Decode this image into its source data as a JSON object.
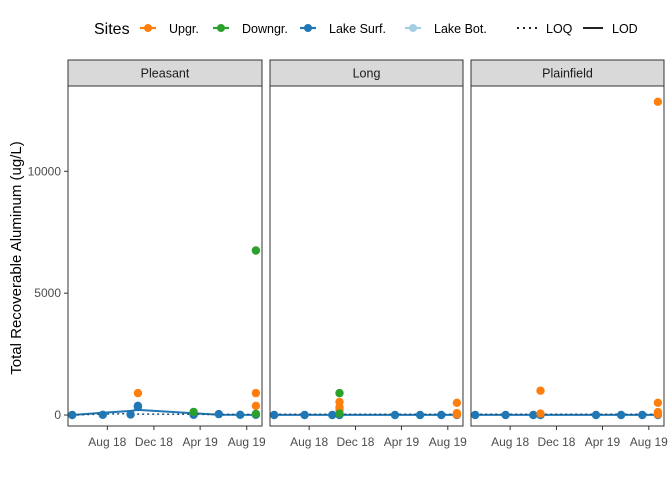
{
  "chart_data": {
    "type": "scatter",
    "ylabel": "Total Recoverable Aluminum (ug/L)",
    "y_ticks": [
      0,
      5000,
      10000
    ],
    "y_tick_labels": [
      "0",
      "5000",
      "10000"
    ],
    "ylim": [
      -450,
      13500
    ],
    "x_ticks": [
      "2018-08-01",
      "2018-12-01",
      "2019-04-01",
      "2019-08-01"
    ],
    "x_tick_labels": [
      "Aug 18",
      "Dec 18",
      "Apr 19",
      "Aug 19"
    ],
    "xlim": [
      "2018-04-20",
      "2019-09-10"
    ],
    "legend": {
      "title": "Sites",
      "position": "top",
      "site_items": [
        {
          "label": "Upgr.",
          "color": "#FF7F0E"
        },
        {
          "label": "Downgr.",
          "color": "#2CA02C"
        },
        {
          "label": "Lake Surf.",
          "color": "#1F77B4"
        },
        {
          "label": "Lake Bot.",
          "color": "#A6CEE3"
        }
      ],
      "line_items": [
        {
          "label": "LOQ",
          "style": "dotted"
        },
        {
          "label": "LOD",
          "style": "solid"
        }
      ]
    },
    "panels": [
      {
        "title": "Pleasant",
        "series": [
          {
            "site": "Lake Surf.",
            "points": [
              [
                "2018-05-01",
                0
              ],
              [
                "2018-07-20",
                10
              ],
              [
                "2018-10-01",
                20
              ],
              [
                "2018-10-20",
                330
              ],
              [
                "2018-10-20",
                380
              ],
              [
                "2019-03-15",
                10
              ],
              [
                "2019-05-20",
                40
              ],
              [
                "2019-07-15",
                10
              ],
              [
                "2019-08-25",
                10
              ]
            ]
          },
          {
            "site": "Upgr.",
            "points": [
              [
                "2018-10-20",
                900
              ],
              [
                "2019-08-25",
                900
              ],
              [
                "2019-08-25",
                380
              ]
            ]
          },
          {
            "site": "Downgr.",
            "points": [
              [
                "2019-03-15",
                130
              ],
              [
                "2019-08-25",
                6750
              ],
              [
                "2019-08-25",
                50
              ]
            ]
          }
        ],
        "lines": [
          {
            "kind": "LOD",
            "points": [
              [
                "2018-05-01",
                0
              ],
              [
                "2018-07-20",
                90
              ],
              [
                "2018-10-01",
                170
              ],
              [
                "2018-10-20",
                210
              ],
              [
                "2019-03-15",
                70
              ],
              [
                "2019-05-20",
                10
              ],
              [
                "2019-08-25",
                5
              ]
            ]
          },
          {
            "kind": "LOQ",
            "points": [
              [
                "2018-05-01",
                0
              ],
              [
                "2018-07-20",
                40
              ],
              [
                "2018-10-01",
                60
              ],
              [
                "2018-10-20",
                40
              ],
              [
                "2019-03-15",
                30
              ],
              [
                "2019-08-25",
                20
              ]
            ]
          }
        ]
      },
      {
        "title": "Long",
        "series": [
          {
            "site": "Lake Surf.",
            "points": [
              [
                "2018-05-01",
                0
              ],
              [
                "2018-07-20",
                0
              ],
              [
                "2018-10-01",
                0
              ],
              [
                "2018-10-20",
                0
              ],
              [
                "2019-03-15",
                0
              ],
              [
                "2019-05-20",
                0
              ],
              [
                "2019-07-15",
                0
              ],
              [
                "2019-08-25",
                0
              ]
            ]
          },
          {
            "site": "Upgr.",
            "points": [
              [
                "2018-10-20",
                540
              ],
              [
                "2018-10-20",
                320
              ],
              [
                "2018-10-20",
                200
              ],
              [
                "2019-08-25",
                500
              ],
              [
                "2019-08-25",
                80
              ],
              [
                "2019-08-25",
                20
              ]
            ]
          },
          {
            "site": "Downgr.",
            "points": [
              [
                "2018-10-20",
                900
              ],
              [
                "2018-10-20",
                60
              ]
            ]
          }
        ],
        "lines": [
          {
            "kind": "LOD",
            "points": [
              [
                "2018-05-01",
                5
              ],
              [
                "2019-08-25",
                5
              ]
            ]
          },
          {
            "kind": "LOQ",
            "points": [
              [
                "2018-05-01",
                30
              ],
              [
                "2019-08-25",
                30
              ]
            ]
          }
        ]
      },
      {
        "title": "Plainfield",
        "series": [
          {
            "site": "Lake Surf.",
            "points": [
              [
                "2018-05-01",
                0
              ],
              [
                "2018-07-20",
                0
              ],
              [
                "2018-10-01",
                0
              ],
              [
                "2018-10-20",
                0
              ],
              [
                "2019-03-15",
                0
              ],
              [
                "2019-05-20",
                0
              ],
              [
                "2019-07-15",
                0
              ],
              [
                "2019-08-25",
                0
              ]
            ]
          },
          {
            "site": "Upgr.",
            "points": [
              [
                "2018-10-20",
                1000
              ],
              [
                "2018-10-20",
                60
              ],
              [
                "2019-08-25",
                12850
              ],
              [
                "2019-08-25",
                500
              ],
              [
                "2019-08-25",
                120
              ],
              [
                "2019-08-25",
                30
              ]
            ]
          }
        ],
        "lines": [
          {
            "kind": "LOD",
            "points": [
              [
                "2018-05-01",
                5
              ],
              [
                "2019-08-25",
                5
              ]
            ]
          },
          {
            "kind": "LOQ",
            "points": [
              [
                "2018-05-01",
                30
              ],
              [
                "2019-08-25",
                30
              ]
            ]
          }
        ]
      }
    ]
  }
}
